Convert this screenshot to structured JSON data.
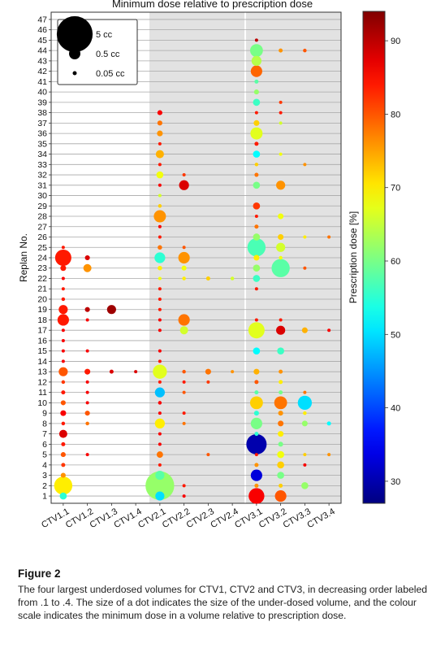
{
  "chart_data": {
    "type": "scatter",
    "title": "Minimum dose relative to prescription dose",
    "ylabel": "Replan No.",
    "colorbar_label": "Prescription dose [%]",
    "colorbar_ticks": [
      30,
      40,
      50,
      60,
      70,
      80,
      90
    ],
    "colorbar_range": [
      27,
      94
    ],
    "categories": [
      "CTV1.1",
      "CTV1.2",
      "CTV1.3",
      "CTV1.4",
      "CTV2.1",
      "CTV2.2",
      "CTV2.3",
      "CTV2.4",
      "CTV3.1",
      "CTV3.2",
      "CTV3.3",
      "CTV3.4"
    ],
    "y_ticks": [
      1,
      2,
      3,
      4,
      5,
      6,
      7,
      8,
      9,
      10,
      11,
      12,
      13,
      14,
      15,
      16,
      17,
      18,
      19,
      20,
      21,
      22,
      23,
      24,
      25,
      26,
      27,
      28,
      29,
      30,
      31,
      32,
      33,
      34,
      35,
      36,
      37,
      38,
      39,
      40,
      41,
      42,
      43,
      44,
      45,
      46,
      47
    ],
    "ylim": [
      0.3,
      47.7
    ],
    "shaded_groups": [
      "CTV2",
      "CTV3"
    ],
    "size_legend": [
      {
        "label": "5 cc",
        "volume": 5
      },
      {
        "label": "0.5 cc",
        "volume": 0.5
      },
      {
        "label": "0.05 cc",
        "volume": 0.05
      }
    ],
    "points": [
      [
        0,
        1,
        0.3,
        55
      ],
      [
        0,
        2,
        2,
        70
      ],
      [
        0,
        3,
        0.15,
        76
      ],
      [
        0,
        4,
        0.1,
        82
      ],
      [
        0,
        5,
        0.15,
        80
      ],
      [
        0,
        6,
        0.1,
        84
      ],
      [
        0,
        7,
        0.4,
        88
      ],
      [
        0,
        8,
        0.08,
        84
      ],
      [
        0,
        9,
        0.2,
        86
      ],
      [
        0,
        10,
        0.15,
        80
      ],
      [
        0,
        11,
        0.1,
        84
      ],
      [
        0,
        12,
        0.08,
        82
      ],
      [
        0,
        13,
        0.5,
        80
      ],
      [
        0,
        14,
        0.05,
        86
      ],
      [
        0,
        15,
        0.06,
        86
      ],
      [
        0,
        16,
        0.04,
        86
      ],
      [
        0,
        17,
        0.04,
        86
      ],
      [
        0,
        18,
        0.8,
        84
      ],
      [
        0,
        19,
        0.5,
        84
      ],
      [
        0,
        20,
        0.08,
        84
      ],
      [
        0,
        21,
        0.06,
        84
      ],
      [
        0,
        22,
        0.06,
        86
      ],
      [
        0,
        23,
        0.2,
        84
      ],
      [
        0,
        24,
        1.6,
        84
      ],
      [
        0,
        25,
        0.04,
        84
      ],
      [
        1,
        5,
        0.03,
        86
      ],
      [
        1,
        8,
        0.08,
        78
      ],
      [
        1,
        9,
        0.15,
        80
      ],
      [
        1,
        10,
        0.05,
        86
      ],
      [
        1,
        11,
        0.05,
        86
      ],
      [
        1,
        12,
        0.05,
        86
      ],
      [
        1,
        13,
        0.2,
        84
      ],
      [
        1,
        15,
        0.03,
        86
      ],
      [
        1,
        18,
        0.04,
        86
      ],
      [
        1,
        19,
        0.15,
        90
      ],
      [
        1,
        23,
        0.4,
        76
      ],
      [
        1,
        24,
        0.15,
        88
      ],
      [
        2,
        13,
        0.1,
        88
      ],
      [
        2,
        19,
        0.5,
        92
      ],
      [
        3,
        13,
        0.03,
        88
      ],
      [
        4,
        1,
        0.5,
        50
      ],
      [
        4,
        2,
        5,
        62
      ],
      [
        4,
        3,
        0.5,
        58
      ],
      [
        4,
        4,
        0.04,
        84
      ],
      [
        4,
        5,
        0.25,
        78
      ],
      [
        4,
        6,
        0.04,
        86
      ],
      [
        4,
        7,
        0.04,
        86
      ],
      [
        4,
        8,
        0.6,
        70
      ],
      [
        4,
        9,
        0.04,
        86
      ],
      [
        4,
        10,
        0.08,
        86
      ],
      [
        4,
        11,
        0.6,
        48
      ],
      [
        4,
        12,
        0.06,
        84
      ],
      [
        4,
        13,
        1.2,
        67
      ],
      [
        4,
        14,
        0.04,
        84
      ],
      [
        4,
        15,
        0.04,
        86
      ],
      [
        4,
        17,
        0.04,
        86
      ],
      [
        4,
        18,
        0.04,
        86
      ],
      [
        4,
        19,
        0.06,
        84
      ],
      [
        4,
        20,
        0.04,
        84
      ],
      [
        4,
        21,
        0.04,
        84
      ],
      [
        4,
        22,
        0.06,
        68
      ],
      [
        4,
        23,
        0.12,
        70
      ],
      [
        4,
        24,
        0.7,
        55
      ],
      [
        4,
        25,
        0.12,
        78
      ],
      [
        4,
        26,
        0.04,
        84
      ],
      [
        4,
        27,
        0.04,
        86
      ],
      [
        4,
        28,
        0.9,
        76
      ],
      [
        4,
        29,
        0.08,
        72
      ],
      [
        4,
        30,
        0.04,
        66
      ],
      [
        4,
        31,
        0.04,
        86
      ],
      [
        4,
        32,
        0.3,
        68
      ],
      [
        4,
        33,
        0.04,
        84
      ],
      [
        4,
        34,
        0.4,
        74
      ],
      [
        4,
        35,
        0.04,
        84
      ],
      [
        4,
        36,
        0.2,
        76
      ],
      [
        4,
        37,
        0.15,
        78
      ],
      [
        4,
        38,
        0.15,
        86
      ],
      [
        5,
        1,
        0.03,
        86
      ],
      [
        5,
        2,
        0.03,
        84
      ],
      [
        5,
        8,
        0.05,
        78
      ],
      [
        5,
        9,
        0.04,
        84
      ],
      [
        5,
        11,
        0.05,
        80
      ],
      [
        5,
        12,
        0.05,
        84
      ],
      [
        5,
        13,
        0.08,
        80
      ],
      [
        5,
        17,
        0.4,
        66
      ],
      [
        5,
        18,
        0.8,
        78
      ],
      [
        5,
        22,
        0.08,
        70
      ],
      [
        5,
        23,
        0.15,
        68
      ],
      [
        5,
        24,
        0.8,
        76
      ],
      [
        5,
        25,
        0.06,
        80
      ],
      [
        5,
        31,
        0.6,
        88
      ],
      [
        5,
        32,
        0.04,
        82
      ],
      [
        6,
        5,
        0.04,
        80
      ],
      [
        6,
        12,
        0.03,
        82
      ],
      [
        6,
        13,
        0.2,
        78
      ],
      [
        6,
        22,
        0.1,
        72
      ],
      [
        7,
        13,
        0.04,
        76
      ],
      [
        7,
        22,
        0.08,
        66
      ],
      [
        8,
        1,
        1.5,
        86
      ],
      [
        8,
        2,
        0.1,
        76
      ],
      [
        8,
        3,
        0.8,
        33
      ],
      [
        8,
        4,
        0.1,
        76
      ],
      [
        8,
        5,
        0.06,
        84
      ],
      [
        8,
        6,
        2.5,
        30
      ],
      [
        8,
        7,
        0.1,
        55
      ],
      [
        8,
        8,
        0.8,
        60
      ],
      [
        8,
        9,
        0.15,
        55
      ],
      [
        8,
        10,
        1,
        72
      ],
      [
        8,
        11,
        0.1,
        58
      ],
      [
        8,
        12,
        0.1,
        80
      ],
      [
        8,
        13,
        0.2,
        74
      ],
      [
        8,
        15,
        0.3,
        52
      ],
      [
        8,
        17,
        1.6,
        67
      ],
      [
        8,
        18,
        0.06,
        84
      ],
      [
        8,
        21,
        0.05,
        84
      ],
      [
        8,
        22,
        0.3,
        56
      ],
      [
        8,
        23,
        0.3,
        62
      ],
      [
        8,
        24,
        0.2,
        70
      ],
      [
        8,
        25,
        2,
        57
      ],
      [
        8,
        26,
        0.3,
        62
      ],
      [
        8,
        27,
        0.1,
        78
      ],
      [
        8,
        28,
        0.06,
        84
      ],
      [
        8,
        29,
        0.3,
        82
      ],
      [
        8,
        31,
        0.3,
        60
      ],
      [
        8,
        32,
        0.1,
        78
      ],
      [
        8,
        33,
        0.08,
        72
      ],
      [
        8,
        34,
        0.3,
        52
      ],
      [
        8,
        35,
        0.1,
        84
      ],
      [
        8,
        36,
        0.9,
        67
      ],
      [
        8,
        37,
        0.2,
        72
      ],
      [
        8,
        38,
        0.06,
        84
      ],
      [
        8,
        39,
        0.3,
        56
      ],
      [
        8,
        40,
        0.15,
        62
      ],
      [
        8,
        41,
        0.1,
        58
      ],
      [
        8,
        42,
        0.8,
        79
      ],
      [
        8,
        43,
        0.6,
        64
      ],
      [
        8,
        44,
        1,
        60
      ],
      [
        8,
        45,
        0.05,
        90
      ],
      [
        9,
        1,
        0.8,
        80
      ],
      [
        9,
        2,
        0.1,
        72
      ],
      [
        9,
        3,
        0.3,
        60
      ],
      [
        9,
        4,
        0.3,
        72
      ],
      [
        9,
        5,
        0.3,
        68
      ],
      [
        9,
        6,
        0.15,
        60
      ],
      [
        9,
        7,
        0.2,
        70
      ],
      [
        9,
        8,
        0.2,
        78
      ],
      [
        9,
        9,
        0.15,
        76
      ],
      [
        9,
        10,
        1,
        78
      ],
      [
        9,
        11,
        0.1,
        60
      ],
      [
        9,
        12,
        0.1,
        70
      ],
      [
        9,
        13,
        0.1,
        76
      ],
      [
        9,
        15,
        0.3,
        56
      ],
      [
        9,
        17,
        0.5,
        88
      ],
      [
        9,
        18,
        0.06,
        84
      ],
      [
        9,
        23,
        2,
        58
      ],
      [
        9,
        24,
        0.08,
        68
      ],
      [
        9,
        25,
        0.5,
        66
      ],
      [
        9,
        26,
        0.2,
        72
      ],
      [
        9,
        28,
        0.2,
        68
      ],
      [
        9,
        31,
        0.5,
        76
      ],
      [
        9,
        34,
        0.05,
        68
      ],
      [
        9,
        37,
        0.05,
        66
      ],
      [
        9,
        38,
        0.06,
        84
      ],
      [
        9,
        39,
        0.06,
        82
      ],
      [
        9,
        44,
        0.1,
        76
      ],
      [
        10,
        2,
        0.3,
        62
      ],
      [
        10,
        4,
        0.03,
        86
      ],
      [
        10,
        5,
        0.04,
        72
      ],
      [
        10,
        8,
        0.2,
        62
      ],
      [
        10,
        9,
        0.08,
        70
      ],
      [
        10,
        10,
        1.2,
        50
      ],
      [
        10,
        11,
        0.04,
        78
      ],
      [
        10,
        17,
        0.2,
        74
      ],
      [
        10,
        23,
        0.03,
        80
      ],
      [
        10,
        26,
        0.04,
        70
      ],
      [
        10,
        33,
        0.04,
        76
      ],
      [
        10,
        44,
        0.08,
        80
      ],
      [
        11,
        5,
        0.03,
        76
      ],
      [
        11,
        8,
        0.1,
        52
      ],
      [
        11,
        17,
        0.06,
        86
      ],
      [
        11,
        26,
        0.04,
        78
      ]
    ]
  },
  "caption": {
    "title": "Figure 2",
    "body": "The four largest underdosed volumes for CTV1, CTV2 and CTV3, in decreasing order labeled from .1 to .4. The size of a dot indicates the size of the under-dosed volume, and the colour scale indicates the minimum dose in a volume relative to prescription dose."
  }
}
